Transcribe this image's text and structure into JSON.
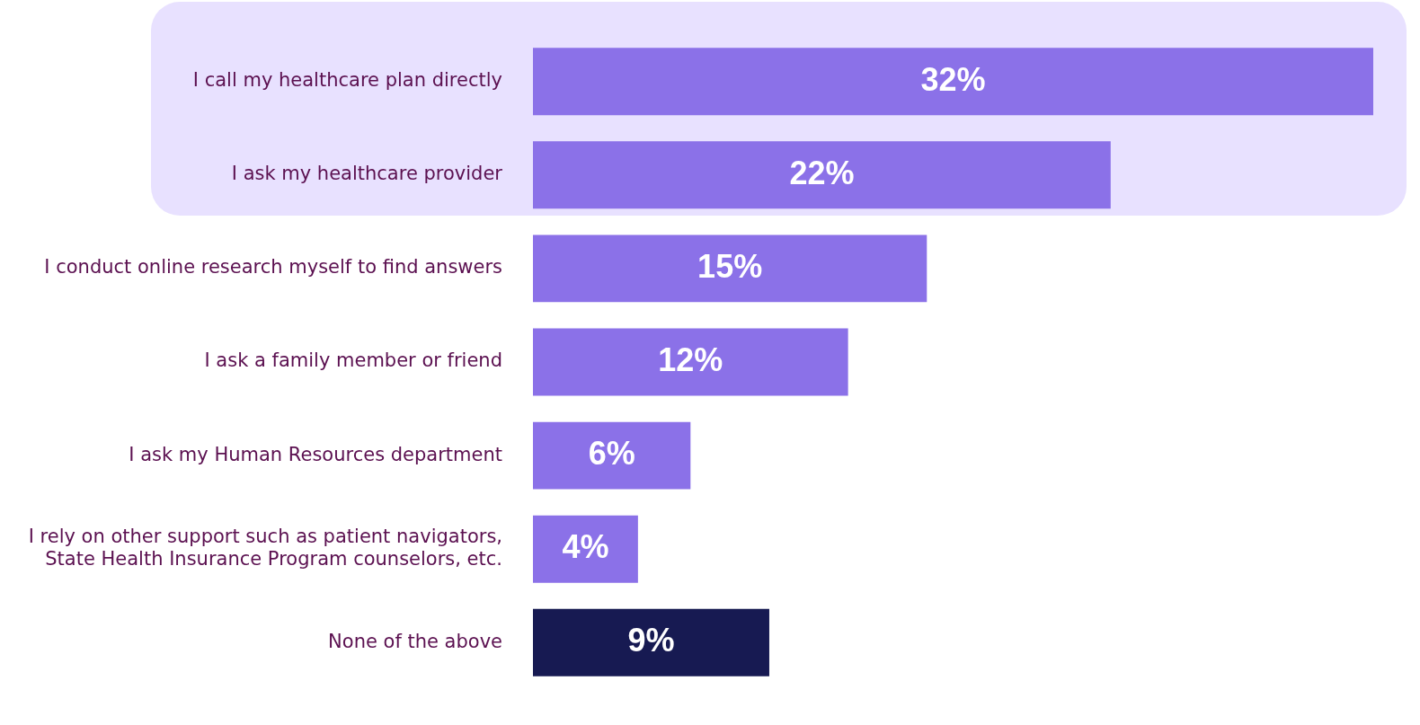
{
  "chart_data": {
    "type": "bar",
    "orientation": "horizontal",
    "categories": [
      "I call my healthcare plan directly",
      "I ask my healthcare provider",
      "I conduct online research myself to find answers",
      "I ask a family member or friend",
      "I ask my Human Resources department",
      "I rely on other support such as patient navigators,\nState Health Insurance Program counselors, etc.",
      "None of the above"
    ],
    "values": [
      32,
      22,
      15,
      12,
      6,
      4,
      9
    ],
    "colors": [
      "#8b71e8",
      "#8b71e8",
      "#8b71e8",
      "#8b71e8",
      "#8b71e8",
      "#8b71e8",
      "#171a52"
    ],
    "value_labels": [
      "32%",
      "22%",
      "15%",
      "12%",
      "6%",
      "4%",
      "9%"
    ],
    "tick_labels": "y",
    "legend": false
  }
}
